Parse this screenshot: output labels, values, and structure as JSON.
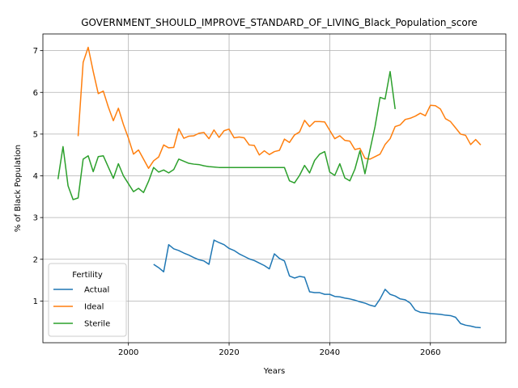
{
  "chart_data": {
    "type": "line",
    "title": "GOVERNMENT_SHOULD_IMPROVE_STANDARD_OF_LIVING_Black_Population_score",
    "xlabel": "Years",
    "ylabel": "% of Black Population",
    "xlim": [
      1983,
      2075
    ],
    "ylim": [
      0,
      7.4
    ],
    "xticks": [
      2000,
      2020,
      2040,
      2060
    ],
    "yticks": [
      1,
      2,
      3,
      4,
      5,
      6,
      7
    ],
    "grid": true,
    "legend": {
      "title": "Fertility",
      "placement": "lower-left"
    },
    "series": [
      {
        "name": "Actual",
        "color": "#1f77b4",
        "x": [
          2005,
          2006,
          2007,
          2008,
          2009,
          2010,
          2011,
          2012,
          2013,
          2014,
          2015,
          2016,
          2017,
          2018,
          2019,
          2020,
          2021,
          2022,
          2023,
          2024,
          2025,
          2026,
          2027,
          2028,
          2029,
          2030,
          2031,
          2032,
          2033,
          2034,
          2035,
          2036,
          2037,
          2038,
          2039,
          2040,
          2041,
          2042,
          2043,
          2044,
          2045,
          2046,
          2047,
          2048,
          2049,
          2050,
          2051,
          2052,
          2053,
          2054,
          2055,
          2056,
          2057,
          2058,
          2059,
          2060,
          2061,
          2062,
          2063,
          2064,
          2065,
          2066,
          2067,
          2068,
          2069,
          2070
        ],
        "values": [
          1.88,
          1.8,
          1.7,
          2.35,
          2.25,
          2.21,
          2.15,
          2.1,
          2.04,
          1.99,
          1.96,
          1.88,
          2.46,
          2.4,
          2.35,
          2.26,
          2.21,
          2.13,
          2.07,
          2.01,
          1.97,
          1.91,
          1.85,
          1.77,
          2.13,
          2.02,
          1.96,
          1.6,
          1.55,
          1.59,
          1.57,
          1.22,
          1.2,
          1.2,
          1.16,
          1.16,
          1.11,
          1.1,
          1.07,
          1.05,
          1.02,
          0.98,
          0.95,
          0.9,
          0.87,
          1.05,
          1.28,
          1.16,
          1.12,
          1.05,
          1.03,
          0.95,
          0.78,
          0.73,
          0.72,
          0.7,
          0.69,
          0.68,
          0.66,
          0.65,
          0.61,
          0.46,
          0.42,
          0.4,
          0.37,
          0.36
        ]
      },
      {
        "name": "Ideal",
        "color": "#ff7f0e",
        "x": [
          1990,
          1991,
          1992,
          1993,
          1994,
          1995,
          1996,
          1997,
          1998,
          1999,
          2000,
          2001,
          2002,
          2003,
          2004,
          2005,
          2006,
          2007,
          2008,
          2009,
          2010,
          2011,
          2012,
          2013,
          2014,
          2015,
          2016,
          2017,
          2018,
          2019,
          2020,
          2021,
          2022,
          2023,
          2024,
          2025,
          2026,
          2027,
          2028,
          2029,
          2030,
          2031,
          2032,
          2033,
          2034,
          2035,
          2036,
          2037,
          2038,
          2039,
          2040,
          2041,
          2042,
          2043,
          2044,
          2045,
          2046,
          2047,
          2048,
          2049,
          2050,
          2051,
          2052,
          2053,
          2054,
          2055,
          2056,
          2057,
          2058,
          2059,
          2060,
          2061,
          2062,
          2063,
          2064,
          2065,
          2066,
          2067,
          2068,
          2069,
          2070
        ],
        "values": [
          4.95,
          6.72,
          7.08,
          6.5,
          5.97,
          6.03,
          5.65,
          5.32,
          5.62,
          5.23,
          4.9,
          4.52,
          4.62,
          4.4,
          4.18,
          4.36,
          4.45,
          4.74,
          4.67,
          4.68,
          5.13,
          4.9,
          4.95,
          4.96,
          5.02,
          5.04,
          4.89,
          5.1,
          4.92,
          5.08,
          5.12,
          4.91,
          4.93,
          4.91,
          4.74,
          4.73,
          4.5,
          4.6,
          4.51,
          4.58,
          4.61,
          4.88,
          4.8,
          4.98,
          5.05,
          5.33,
          5.18,
          5.3,
          5.3,
          5.29,
          5.09,
          4.89,
          4.96,
          4.85,
          4.83,
          4.63,
          4.66,
          4.42,
          4.4,
          4.46,
          4.52,
          4.75,
          4.89,
          5.18,
          5.22,
          5.35,
          5.38,
          5.43,
          5.5,
          5.44,
          5.69,
          5.68,
          5.6,
          5.37,
          5.3,
          5.15,
          5.0,
          4.97,
          4.75,
          4.87,
          4.74
        ]
      },
      {
        "name": "Sterile",
        "color": "#2ca02c",
        "x": [
          1986,
          1987,
          1988,
          1989,
          1990,
          1991,
          1992,
          1993,
          1994,
          1995,
          1996,
          1997,
          1998,
          1999,
          2000,
          2001,
          2002,
          2003,
          2004,
          2005,
          2006,
          2007,
          2008,
          2009,
          2010,
          2011,
          2012,
          2013,
          2014,
          2015,
          2016,
          2017,
          2018,
          2019,
          2020,
          2021,
          2022,
          2023,
          2024,
          2025,
          2026,
          2027,
          2028,
          2029,
          2030,
          2031,
          2032,
          2033,
          2034,
          2035,
          2036,
          2037,
          2038,
          2039,
          2040,
          2041,
          2042,
          2043,
          2044,
          2045,
          2046,
          2047,
          2048,
          2049,
          2050,
          2051,
          2052,
          2053
        ],
        "values": [
          3.92,
          4.7,
          3.76,
          3.43,
          3.47,
          4.4,
          4.48,
          4.1,
          4.46,
          4.48,
          4.21,
          3.94,
          4.29,
          4.0,
          3.81,
          3.62,
          3.7,
          3.6,
          3.87,
          4.2,
          4.09,
          4.14,
          4.07,
          4.15,
          4.4,
          4.35,
          4.3,
          4.28,
          4.27,
          4.24,
          4.22,
          4.21,
          4.2,
          4.2,
          4.2,
          4.2,
          4.2,
          4.2,
          4.2,
          4.2,
          4.2,
          4.2,
          4.2,
          4.2,
          4.2,
          4.2,
          3.88,
          3.83,
          4.01,
          4.25,
          4.07,
          4.37,
          4.52,
          4.58,
          4.09,
          4.01,
          4.29,
          3.95,
          3.88,
          4.16,
          4.6,
          4.05,
          4.62,
          5.18,
          5.88,
          5.84,
          6.5,
          5.6
        ]
      }
    ]
  }
}
